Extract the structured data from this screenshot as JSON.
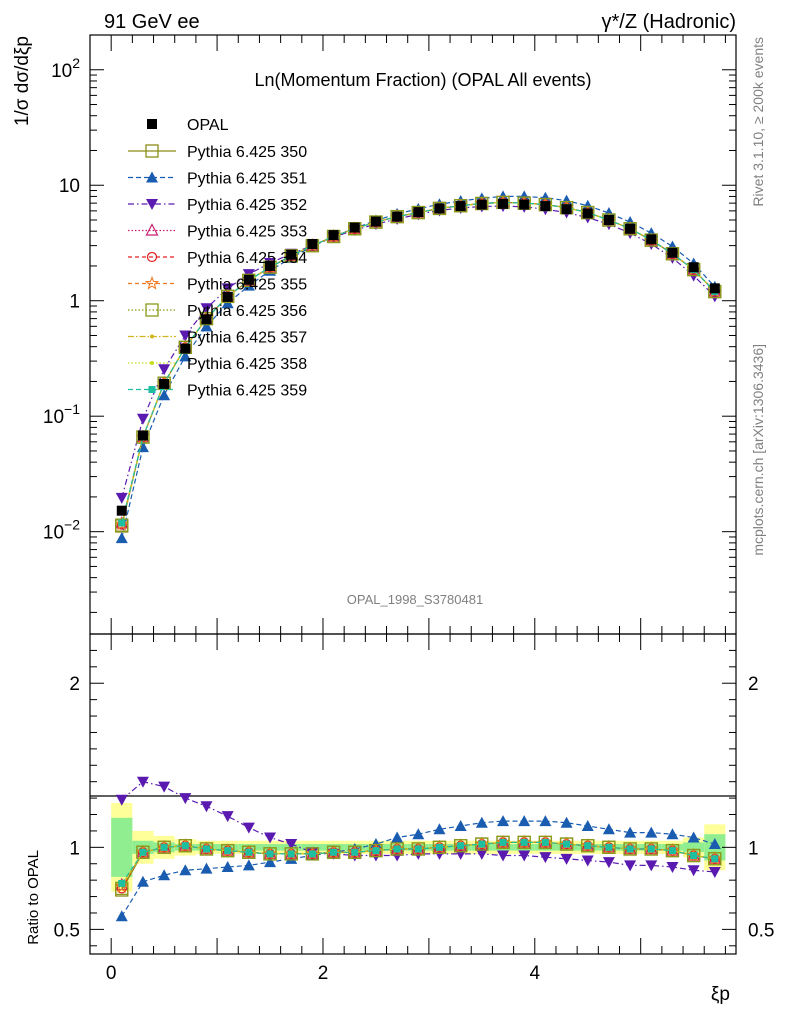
{
  "header": {
    "left": "91 GeV ee",
    "right": "γ*/Z (Hadronic)"
  },
  "side_labels": {
    "rivet": "Rivet 3.1.10, ≥ 200k events",
    "mcplots": "mcplots.cern.ch [arXiv:1306.3436]"
  },
  "chart_data": [
    {
      "type": "line",
      "title": "Ln(Momentum Fraction) (OPAL All events)",
      "watermark": "OPAL_1998_S3780481",
      "ylabel": "1/σ dσ/dξp",
      "yscale": "log",
      "xlim": [
        -0.2,
        5.9
      ],
      "ylim": [
        0.0013,
        200
      ],
      "y_tick_labels": [
        "10^-2",
        "10^-1",
        "1",
        "10",
        "10^2"
      ],
      "x": [
        0.1,
        0.3,
        0.5,
        0.7,
        0.9,
        1.1,
        1.3,
        1.5,
        1.7,
        1.9,
        2.1,
        2.3,
        2.5,
        2.7,
        2.9,
        3.1,
        3.3,
        3.5,
        3.7,
        3.9,
        4.1,
        4.3,
        4.5,
        4.7,
        4.9,
        5.1,
        5.3,
        5.5,
        5.7
      ],
      "data_series": {
        "name": "OPAL",
        "values": [
          0.0152,
          0.068,
          0.19,
          0.385,
          0.69,
          1.08,
          1.52,
          2.0,
          2.5,
          3.1,
          3.7,
          4.3,
          4.85,
          5.35,
          5.85,
          6.3,
          6.6,
          6.8,
          6.9,
          6.8,
          6.6,
          6.2,
          5.7,
          5.0,
          4.2,
          3.4,
          2.6,
          1.95,
          1.28
        ]
      },
      "series": [
        {
          "name": "Pythia 6.425 350",
          "color": "#8c8c1a",
          "marker": "open-square",
          "dash": "solid",
          "values": [
            0.0112,
            0.066,
            0.193,
            0.395,
            0.7,
            1.09,
            1.5,
            1.95,
            2.45,
            3.0,
            3.6,
            4.2,
            4.8,
            5.35,
            5.8,
            6.3,
            6.65,
            6.95,
            7.1,
            7.0,
            6.8,
            6.4,
            5.8,
            5.0,
            4.2,
            3.35,
            2.55,
            1.86,
            1.2
          ]
        },
        {
          "name": "Pythia 6.425 351",
          "color": "#1a5cb0",
          "marker": "filled-triangle-up",
          "dash": "5,3",
          "values": [
            0.0088,
            0.054,
            0.152,
            0.33,
            0.6,
            0.95,
            1.35,
            1.82,
            2.35,
            2.95,
            3.6,
            4.25,
            4.95,
            5.65,
            6.25,
            6.85,
            7.3,
            7.7,
            8.0,
            8.0,
            7.8,
            7.35,
            6.65,
            5.75,
            4.8,
            3.85,
            2.95,
            2.1,
            1.32
          ]
        },
        {
          "name": "Pythia 6.425 352",
          "color": "#5a1ab0",
          "marker": "filled-triangle-down",
          "dash": "6,3,1.5,3",
          "values": [
            0.0196,
            0.095,
            0.255,
            0.5,
            0.86,
            1.28,
            1.7,
            2.12,
            2.55,
            3.0,
            3.55,
            4.1,
            4.6,
            5.1,
            5.6,
            6.05,
            6.35,
            6.55,
            6.6,
            6.5,
            6.2,
            5.8,
            5.25,
            4.6,
            3.85,
            3.1,
            2.35,
            1.65,
            1.09
          ]
        },
        {
          "name": "Pythia 6.425 353",
          "color": "#c81e6e",
          "marker": "open-triangle-up",
          "dash": "1.5,2",
          "values": [
            0.0118,
            0.066,
            0.193,
            0.395,
            0.7,
            1.09,
            1.5,
            1.95,
            2.45,
            3.0,
            3.6,
            4.2,
            4.8,
            5.35,
            5.8,
            6.3,
            6.65,
            6.95,
            7.1,
            7.0,
            6.8,
            6.4,
            5.8,
            5.0,
            4.2,
            3.35,
            2.55,
            1.86,
            1.2
          ]
        },
        {
          "name": "Pythia 6.425 354",
          "color": "#e02020",
          "marker": "open-circle",
          "dash": "4,3",
          "values": [
            0.0115,
            0.066,
            0.193,
            0.395,
            0.7,
            1.09,
            1.5,
            1.95,
            2.45,
            3.0,
            3.6,
            4.2,
            4.8,
            5.35,
            5.8,
            6.3,
            6.65,
            6.95,
            7.1,
            7.0,
            6.8,
            6.4,
            5.8,
            5.0,
            4.2,
            3.35,
            2.55,
            1.86,
            1.2
          ]
        },
        {
          "name": "Pythia 6.425 355",
          "color": "#f07820",
          "marker": "open-star",
          "dash": "4,3",
          "values": [
            0.0116,
            0.066,
            0.193,
            0.395,
            0.7,
            1.09,
            1.5,
            1.95,
            2.45,
            3.0,
            3.6,
            4.2,
            4.8,
            5.35,
            5.8,
            6.3,
            6.65,
            6.95,
            7.1,
            7.0,
            6.8,
            6.4,
            5.8,
            5.0,
            4.2,
            3.35,
            2.55,
            1.86,
            1.2
          ]
        },
        {
          "name": "Pythia 6.425 356",
          "color": "#8c9a1a",
          "marker": "open-square",
          "dash": "1.5,2",
          "values": [
            0.0114,
            0.066,
            0.193,
            0.395,
            0.7,
            1.09,
            1.5,
            1.95,
            2.45,
            3.0,
            3.6,
            4.2,
            4.8,
            5.35,
            5.8,
            6.3,
            6.65,
            6.95,
            7.1,
            7.0,
            6.8,
            6.4,
            5.8,
            5.0,
            4.2,
            3.35,
            2.55,
            1.86,
            1.2
          ]
        },
        {
          "name": "Pythia 6.425 357",
          "color": "#d2b41e",
          "marker": "small-dot",
          "dash": "6,2,1.5,2",
          "values": [
            0.0117,
            0.066,
            0.193,
            0.395,
            0.7,
            1.09,
            1.5,
            1.95,
            2.45,
            3.0,
            3.6,
            4.2,
            4.8,
            5.35,
            5.8,
            6.3,
            6.65,
            6.95,
            7.1,
            7.0,
            6.8,
            6.4,
            5.8,
            5.0,
            4.2,
            3.35,
            2.55,
            1.86,
            1.2
          ]
        },
        {
          "name": "Pythia 6.425 358",
          "color": "#c8dc1e",
          "marker": "small-dot",
          "dash": "1.5,2",
          "values": [
            0.0117,
            0.066,
            0.193,
            0.395,
            0.7,
            1.09,
            1.5,
            1.95,
            2.45,
            3.0,
            3.6,
            4.2,
            4.8,
            5.35,
            5.8,
            6.3,
            6.65,
            6.95,
            7.1,
            7.0,
            6.8,
            6.4,
            5.8,
            5.0,
            4.2,
            3.35,
            2.55,
            1.86,
            1.2
          ]
        },
        {
          "name": "Pythia 6.425 359",
          "color": "#1ebea0",
          "marker": "filled-square-small",
          "dash": "5,3",
          "values": [
            0.0119,
            0.066,
            0.193,
            0.395,
            0.7,
            1.09,
            1.5,
            1.95,
            2.45,
            3.0,
            3.6,
            4.2,
            4.8,
            5.35,
            5.8,
            6.3,
            6.65,
            6.95,
            7.1,
            7.0,
            6.8,
            6.4,
            5.8,
            5.0,
            4.2,
            3.35,
            2.55,
            1.86,
            1.2
          ]
        }
      ]
    },
    {
      "type": "line",
      "ylabel": "Ratio to OPAL",
      "xlabel": "ξp",
      "xlim": [
        -0.2,
        5.9
      ],
      "ylim": [
        0.35,
        2.3
      ],
      "x_tick_labels": [
        "0",
        "2",
        "4"
      ],
      "y_tick_labels": [
        "0.5",
        "1",
        "2"
      ],
      "band_colors": {
        "inner": "#90ee90",
        "outer": "#ffff99"
      },
      "band_inner_halfwidth": [
        0.18,
        0.04,
        0.03,
        0.02,
        0.02,
        0.02,
        0.02,
        0.02,
        0.02,
        0.02,
        0.02,
        0.02,
        0.02,
        0.02,
        0.02,
        0.02,
        0.02,
        0.02,
        0.02,
        0.02,
        0.02,
        0.02,
        0.02,
        0.02,
        0.02,
        0.02,
        0.02,
        0.03,
        0.08
      ],
      "band_outer_halfwidth": [
        0.27,
        0.1,
        0.07,
        0.05,
        0.04,
        0.04,
        0.04,
        0.04,
        0.04,
        0.04,
        0.04,
        0.04,
        0.04,
        0.04,
        0.04,
        0.04,
        0.04,
        0.04,
        0.04,
        0.04,
        0.04,
        0.04,
        0.04,
        0.04,
        0.04,
        0.04,
        0.04,
        0.06,
        0.14
      ],
      "series": [
        {
          "name": "Pythia 6.425 350",
          "values": [
            0.74,
            0.97,
            1.0,
            1.01,
            0.99,
            0.98,
            0.97,
            0.96,
            0.96,
            0.96,
            0.97,
            0.97,
            0.98,
            0.99,
            0.99,
            1.0,
            1.01,
            1.02,
            1.03,
            1.03,
            1.03,
            1.02,
            1.01,
            1.0,
            0.99,
            0.99,
            0.98,
            0.95,
            0.93
          ]
        },
        {
          "name": "Pythia 6.425 351",
          "values": [
            0.58,
            0.79,
            0.83,
            0.86,
            0.87,
            0.88,
            0.89,
            0.91,
            0.93,
            0.95,
            0.97,
            0.99,
            1.02,
            1.06,
            1.08,
            1.11,
            1.13,
            1.15,
            1.16,
            1.16,
            1.16,
            1.15,
            1.13,
            1.11,
            1.09,
            1.09,
            1.08,
            1.06,
            1.02
          ]
        },
        {
          "name": "Pythia 6.425 352",
          "values": [
            1.29,
            1.4,
            1.37,
            1.3,
            1.25,
            1.19,
            1.12,
            1.06,
            1.02,
            0.97,
            0.96,
            0.95,
            0.95,
            0.95,
            0.96,
            0.96,
            0.96,
            0.96,
            0.95,
            0.95,
            0.94,
            0.93,
            0.92,
            0.91,
            0.89,
            0.89,
            0.88,
            0.86,
            0.85
          ]
        },
        {
          "name": "Pythia 6.425 353",
          "values": [
            0.77,
            0.97,
            1.0,
            1.01,
            0.99,
            0.98,
            0.97,
            0.96,
            0.96,
            0.96,
            0.97,
            0.97,
            0.98,
            0.99,
            0.99,
            1.0,
            1.01,
            1.02,
            1.03,
            1.03,
            1.03,
            1.02,
            1.01,
            1.0,
            0.99,
            0.99,
            0.98,
            0.95,
            0.93
          ]
        },
        {
          "name": "Pythia 6.425 354",
          "values": [
            0.75,
            0.97,
            1.0,
            1.01,
            0.99,
            0.98,
            0.97,
            0.96,
            0.96,
            0.96,
            0.97,
            0.97,
            0.98,
            0.99,
            0.99,
            1.0,
            1.01,
            1.02,
            1.03,
            1.03,
            1.03,
            1.02,
            1.01,
            1.0,
            0.99,
            0.99,
            0.98,
            0.95,
            0.93
          ]
        },
        {
          "name": "Pythia 6.425 355",
          "values": [
            0.76,
            0.97,
            1.0,
            1.01,
            0.99,
            0.98,
            0.97,
            0.96,
            0.96,
            0.96,
            0.97,
            0.97,
            0.98,
            0.99,
            0.99,
            1.0,
            1.01,
            1.02,
            1.03,
            1.03,
            1.03,
            1.02,
            1.01,
            1.0,
            0.99,
            0.99,
            0.98,
            0.95,
            0.93
          ]
        },
        {
          "name": "Pythia 6.425 356",
          "values": [
            0.75,
            0.97,
            1.0,
            1.01,
            0.99,
            0.98,
            0.97,
            0.96,
            0.96,
            0.96,
            0.97,
            0.97,
            0.98,
            0.99,
            0.99,
            1.0,
            1.01,
            1.02,
            1.03,
            1.03,
            1.03,
            1.02,
            1.01,
            1.0,
            0.99,
            0.99,
            0.98,
            0.95,
            0.93
          ]
        },
        {
          "name": "Pythia 6.425 357",
          "values": [
            0.77,
            0.97,
            1.0,
            1.01,
            0.99,
            0.98,
            0.97,
            0.96,
            0.96,
            0.96,
            0.97,
            0.97,
            0.98,
            0.99,
            0.99,
            1.0,
            1.01,
            1.02,
            1.03,
            1.03,
            1.03,
            1.02,
            1.01,
            1.0,
            0.99,
            0.99,
            0.98,
            0.95,
            0.93
          ]
        },
        {
          "name": "Pythia 6.425 358",
          "values": [
            0.77,
            0.97,
            1.0,
            1.01,
            0.99,
            0.98,
            0.97,
            0.96,
            0.96,
            0.96,
            0.97,
            0.97,
            0.98,
            0.99,
            0.99,
            1.0,
            1.01,
            1.02,
            1.03,
            1.03,
            1.03,
            1.02,
            1.01,
            1.0,
            0.99,
            0.99,
            0.98,
            0.95,
            0.93
          ]
        },
        {
          "name": "Pythia 6.425 359",
          "values": [
            0.78,
            0.97,
            1.0,
            1.01,
            0.99,
            0.98,
            0.97,
            0.96,
            0.96,
            0.96,
            0.97,
            0.97,
            0.98,
            0.99,
            0.99,
            1.0,
            1.01,
            1.02,
            1.03,
            1.03,
            1.03,
            1.02,
            1.01,
            1.0,
            0.99,
            0.99,
            0.98,
            0.95,
            0.93
          ]
        }
      ]
    }
  ]
}
